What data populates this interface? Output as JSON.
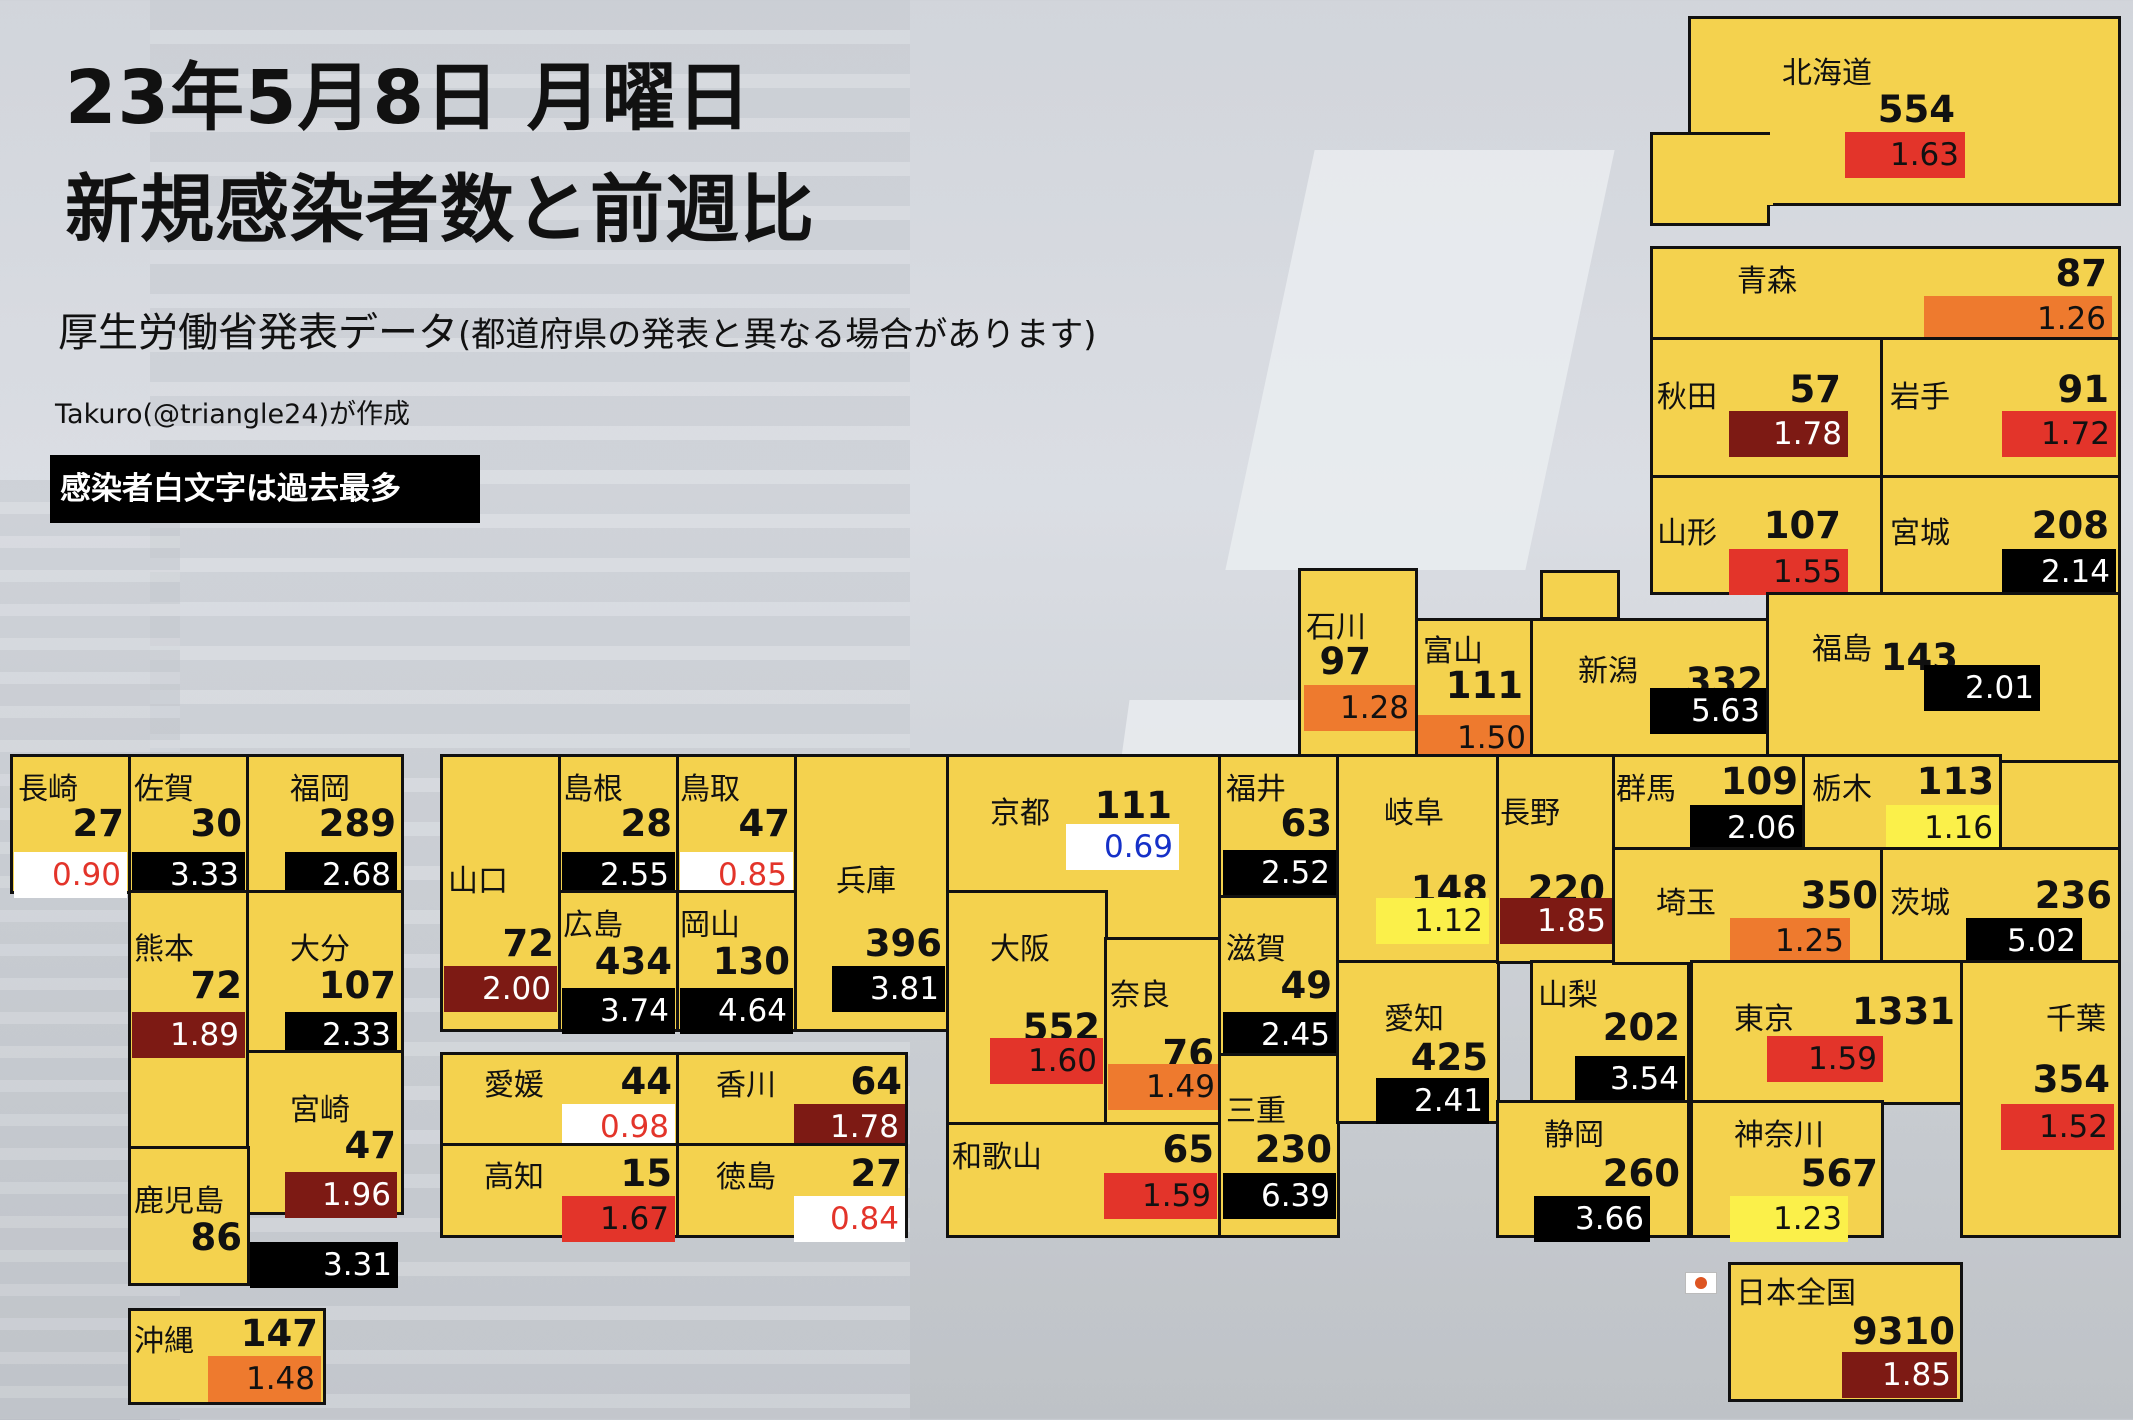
{
  "header": {
    "date_line": "23年5月8日 月曜日",
    "title": "新規感染者数と前週比",
    "source_main": "厚生労働省発表データ",
    "source_note": "(都道府県の発表と異なる場合があります)",
    "author": "Takuro(@triangle24)が作成",
    "legend_note": "感染者白文字は過去最多"
  },
  "colors": {
    "cell_bg": "#f4d24e",
    "ratio_white": "#ffffff",
    "ratio_lightyellow": "#fbf04a",
    "ratio_orange": "#ee7a2e",
    "ratio_red": "#e3342a",
    "ratio_darkred": "#7d1a14",
    "ratio_black": "#000000",
    "text_below_one_red": "#e3342a",
    "text_below_one_blue": "#1530c8"
  },
  "prefectures": {
    "hokkaido": {
      "name": "北海道",
      "cases": "554",
      "ratio": "1.63"
    },
    "aomori": {
      "name": "青森",
      "cases": "87",
      "ratio": "1.26"
    },
    "akita": {
      "name": "秋田",
      "cases": "57",
      "ratio": "1.78"
    },
    "iwate": {
      "name": "岩手",
      "cases": "91",
      "ratio": "1.72"
    },
    "yamagata": {
      "name": "山形",
      "cases": "107",
      "ratio": "1.55"
    },
    "miyagi": {
      "name": "宮城",
      "cases": "208",
      "ratio": "2.14"
    },
    "ishikawa": {
      "name": "石川",
      "cases": "97",
      "ratio": "1.28"
    },
    "toyama": {
      "name": "富山",
      "cases": "111",
      "ratio": "1.50"
    },
    "niigata": {
      "name": "新潟",
      "cases": "332",
      "ratio": "5.63"
    },
    "fukushima": {
      "name": "福島",
      "cases": "143",
      "ratio": "2.01"
    },
    "nagasaki": {
      "name": "長崎",
      "cases": "27",
      "ratio": "0.90"
    },
    "saga": {
      "name": "佐賀",
      "cases": "30",
      "ratio": "3.33"
    },
    "fukuoka": {
      "name": "福岡",
      "cases": "289",
      "ratio": "2.68"
    },
    "kumamoto": {
      "name": "熊本",
      "cases": "72",
      "ratio": "1.89"
    },
    "oita": {
      "name": "大分",
      "cases": "107",
      "ratio": "2.33"
    },
    "miyazaki": {
      "name": "宮崎",
      "cases": "47",
      "ratio": "1.96"
    },
    "kagoshima": {
      "name": "鹿児島",
      "cases": "86",
      "ratio": "3.31"
    },
    "okinawa": {
      "name": "沖縄",
      "cases": "147",
      "ratio": "1.48"
    },
    "yamaguchi": {
      "name": "山口",
      "cases": "72",
      "ratio": "2.00"
    },
    "shimane": {
      "name": "島根",
      "cases": "28",
      "ratio": "2.55"
    },
    "tottori": {
      "name": "鳥取",
      "cases": "47",
      "ratio": "0.85"
    },
    "hiroshima": {
      "name": "広島",
      "cases": "434",
      "ratio": "3.74"
    },
    "okayama": {
      "name": "岡山",
      "cases": "130",
      "ratio": "4.64"
    },
    "hyogo": {
      "name": "兵庫",
      "cases": "396",
      "ratio": "3.81"
    },
    "ehime": {
      "name": "愛媛",
      "cases": "44",
      "ratio": "0.98"
    },
    "kagawa": {
      "name": "香川",
      "cases": "64",
      "ratio": "1.78"
    },
    "kochi": {
      "name": "高知",
      "cases": "15",
      "ratio": "1.67"
    },
    "tokushima": {
      "name": "徳島",
      "cases": "27",
      "ratio": "0.84"
    },
    "kyoto": {
      "name": "京都",
      "cases": "111",
      "ratio": "0.69"
    },
    "osaka": {
      "name": "大阪",
      "cases": "552",
      "ratio": "1.60"
    },
    "nara": {
      "name": "奈良",
      "cases": "76",
      "ratio": "1.49"
    },
    "wakayama": {
      "name": "和歌山",
      "cases": "65",
      "ratio": "1.59"
    },
    "fukui": {
      "name": "福井",
      "cases": "63",
      "ratio": "2.52"
    },
    "shiga": {
      "name": "滋賀",
      "cases": "49",
      "ratio": "2.45"
    },
    "mie": {
      "name": "三重",
      "cases": "230",
      "ratio": "6.39"
    },
    "gifu": {
      "name": "岐阜",
      "cases": "148",
      "ratio": "1.12"
    },
    "aichi": {
      "name": "愛知",
      "cases": "425",
      "ratio": "2.41"
    },
    "nagano": {
      "name": "長野",
      "cases": "220",
      "ratio": "1.85"
    },
    "yamanashi": {
      "name": "山梨",
      "cases": "202",
      "ratio": "3.54"
    },
    "shizuoka": {
      "name": "静岡",
      "cases": "260",
      "ratio": "3.66"
    },
    "gunma": {
      "name": "群馬",
      "cases": "109",
      "ratio": "2.06"
    },
    "tochigi": {
      "name": "栃木",
      "cases": "113",
      "ratio": "1.16"
    },
    "saitama": {
      "name": "埼玉",
      "cases": "350",
      "ratio": "1.25"
    },
    "ibaraki": {
      "name": "茨城",
      "cases": "236",
      "ratio": "5.02"
    },
    "tokyo": {
      "name": "東京",
      "cases": "1331",
      "ratio": "1.59"
    },
    "kanagawa": {
      "name": "神奈川",
      "cases": "567",
      "ratio": "1.23"
    },
    "chiba": {
      "name": "千葉",
      "cases": "354",
      "ratio": "1.52"
    }
  },
  "national": {
    "name": "日本全国",
    "cases": "9310",
    "ratio": "1.85",
    "flag_icon": "japan-flag-icon"
  }
}
